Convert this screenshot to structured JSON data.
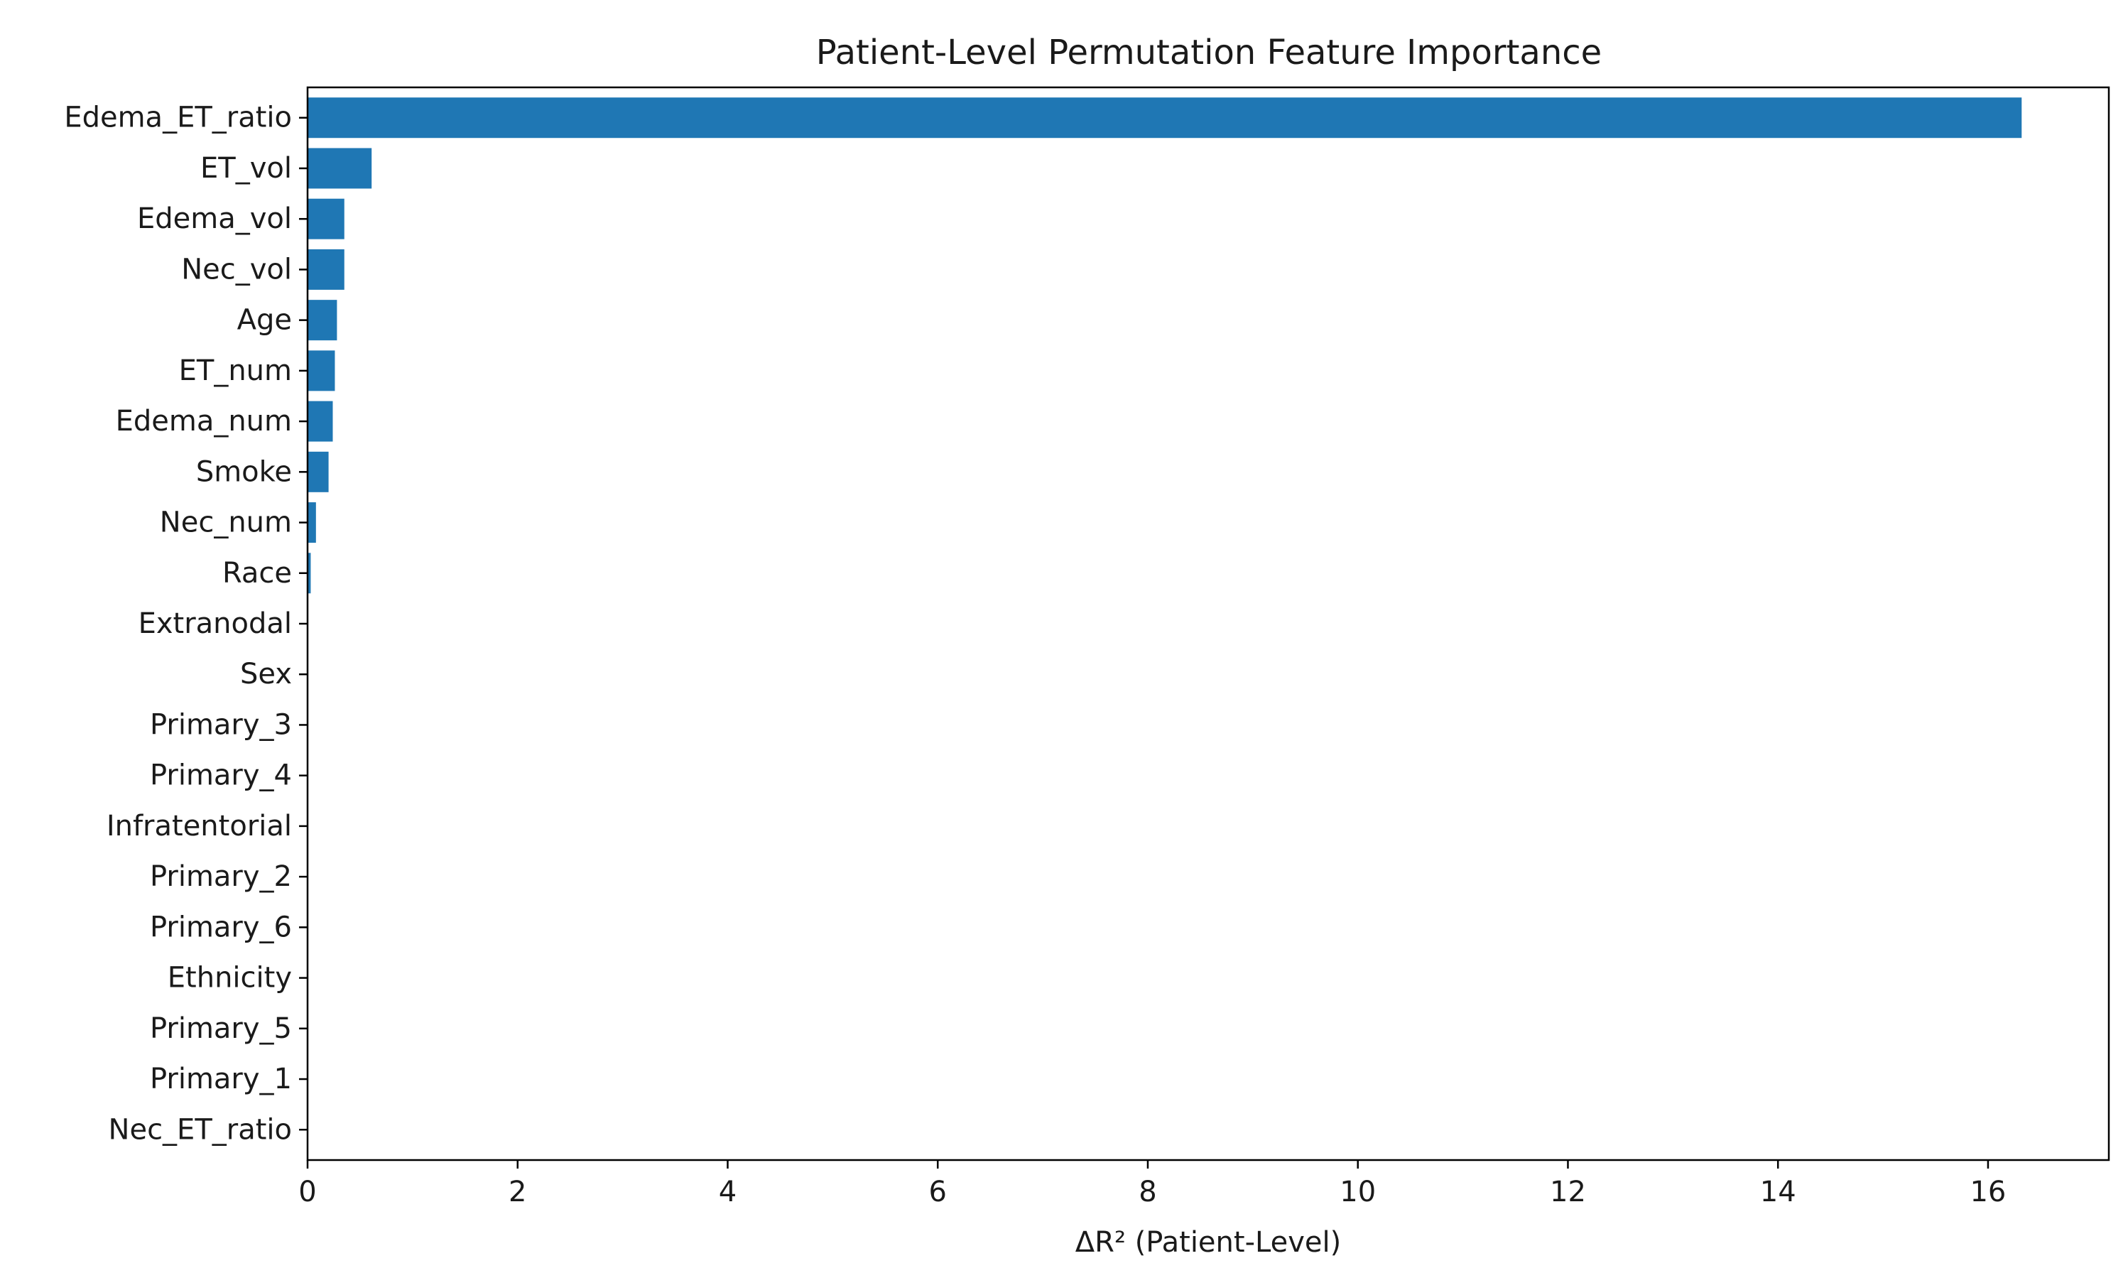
{
  "chart_data": {
    "type": "bar",
    "orientation": "horizontal",
    "title": "Patient-Level Permutation Feature Importance",
    "xlabel": "ΔR² (Patient-Level)",
    "ylabel": "",
    "xlim": [
      0,
      17.15
    ],
    "x_ticks": [
      0,
      2,
      4,
      6,
      8,
      10,
      12,
      14,
      16
    ],
    "grid": false,
    "legend": "none",
    "bar_color": "#1f77b4",
    "categories": [
      "Edema_ET_ratio",
      "ET_vol",
      "Edema_vol",
      "Nec_vol",
      "Age",
      "ET_num",
      "Edema_num",
      "Smoke",
      "Nec_num",
      "Race",
      "Extranodal",
      "Sex",
      "Primary_3",
      "Primary_4",
      "Infratentorial",
      "Primary_2",
      "Primary_6",
      "Ethnicity",
      "Primary_5",
      "Primary_1",
      "Nec_ET_ratio"
    ],
    "values": [
      16.32,
      0.61,
      0.35,
      0.35,
      0.28,
      0.26,
      0.24,
      0.2,
      0.08,
      0.03,
      0,
      0,
      0,
      0,
      0,
      0,
      0,
      0,
      0,
      0,
      0
    ]
  }
}
